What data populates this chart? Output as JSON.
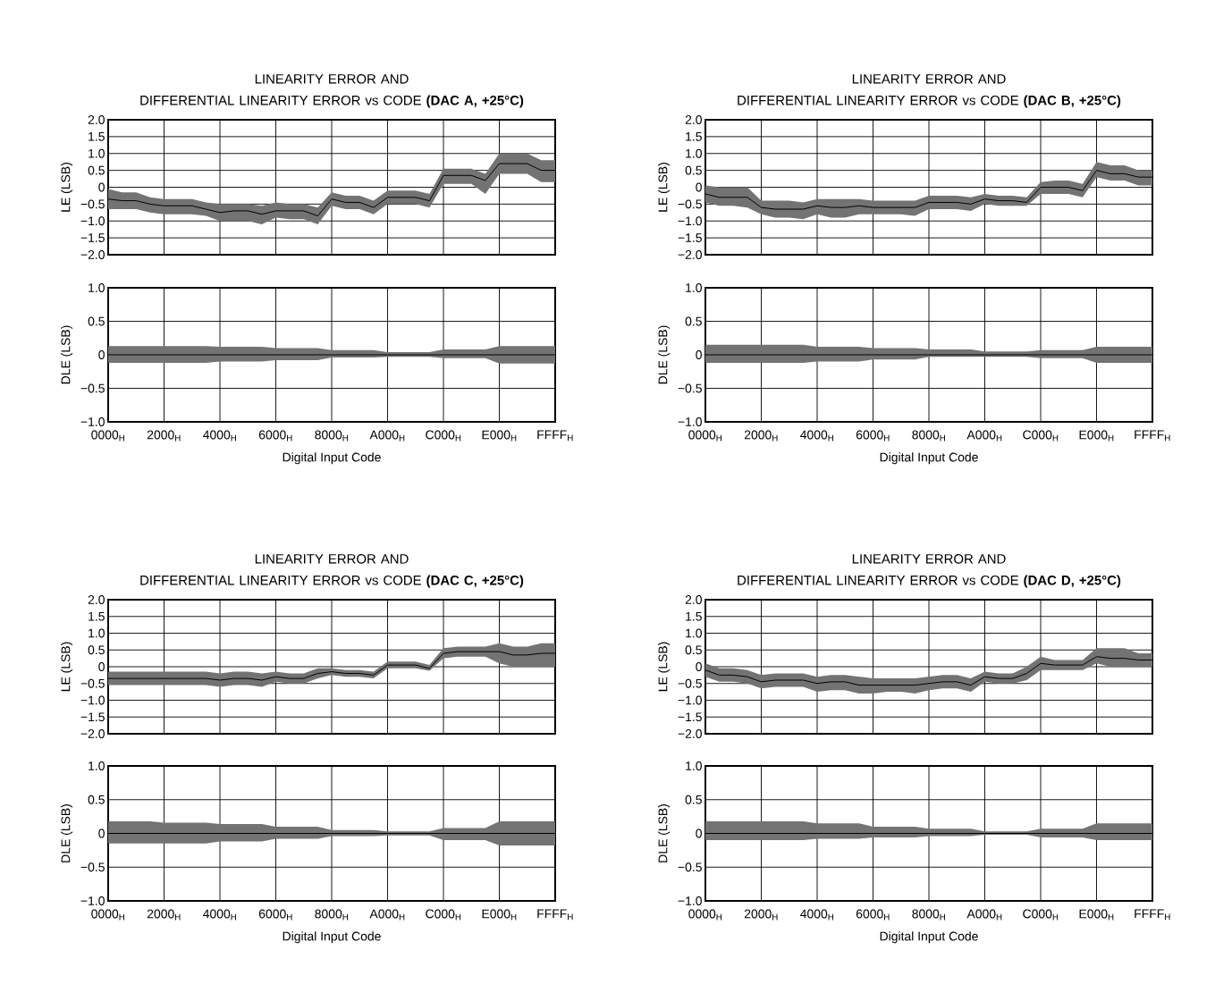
{
  "chart_data": [
    {
      "type": "line",
      "title": "LINEARITY ERROR AND",
      "subtitle": "DIFFERENTIAL LINEARITY ERROR vs CODE **(DAC A, +25°C)**",
      "ylabel": "LE (LSB)",
      "grid": true,
      "tick_labels": "y",
      "categories": [
        null,
        null,
        null,
        null,
        null,
        null,
        null,
        null,
        null,
        null,
        null,
        null,
        null,
        null,
        null,
        null,
        null,
        null,
        null,
        null,
        null,
        null,
        null,
        null,
        null,
        null,
        null,
        null,
        null,
        null,
        null,
        null,
        null
      ],
      "series": [
        {
          "color": "#000000",
          "values": [
            -0.35,
            -0.4,
            -0.4,
            -0.5,
            -0.55,
            -0.55,
            -0.55,
            -0.65,
            -0.75,
            -0.7,
            -0.7,
            -0.8,
            -0.7,
            -0.7,
            -0.7,
            -0.85,
            -0.35,
            -0.45,
            -0.45,
            -0.6,
            -0.3,
            -0.3,
            -0.3,
            -0.4,
            0.35,
            0.35,
            0.35,
            0.2,
            0.7,
            0.7,
            0.7,
            0.5,
            0.5
          ],
          "lower": [
            -0.65,
            -0.65,
            -0.65,
            -0.75,
            -0.8,
            -0.8,
            -0.8,
            -0.85,
            -1.0,
            -1.0,
            -1.0,
            -1.1,
            -0.9,
            -0.95,
            -0.95,
            -1.1,
            -0.55,
            -0.65,
            -0.65,
            -0.8,
            -0.5,
            -0.5,
            -0.5,
            -0.6,
            0.1,
            0.1,
            0.1,
            -0.2,
            0.4,
            0.4,
            0.4,
            0.15,
            0.15
          ],
          "upper": [
            -0.05,
            -0.15,
            -0.15,
            -0.3,
            -0.35,
            -0.35,
            -0.35,
            -0.45,
            -0.5,
            -0.5,
            -0.5,
            -0.55,
            -0.45,
            -0.5,
            -0.5,
            -0.6,
            -0.15,
            -0.25,
            -0.25,
            -0.4,
            -0.1,
            -0.1,
            -0.1,
            -0.2,
            0.55,
            0.55,
            0.55,
            0.4,
            1.0,
            1.0,
            1.0,
            0.8,
            0.8
          ]
        }
      ],
      "ylim": [
        -2,
        2
      ],
      "yticks": [
        {
          "value": -2,
          "label": "−2.0"
        },
        {
          "value": -1.5,
          "label": "−1.5"
        },
        {
          "value": -1,
          "label": "−1.0"
        },
        {
          "value": -0.5,
          "label": "−0.5"
        },
        {
          "value": 0,
          "label": "0"
        },
        {
          "value": 0.5,
          "label": "0.5"
        },
        {
          "value": 1,
          "label": "1.0"
        },
        {
          "value": 1.5,
          "label": "1.5"
        },
        {
          "value": 2,
          "label": "2.0"
        }
      ]
    },
    {
      "type": "line",
      "xlabel": "Digital Input Code",
      "ylabel": "DLE (LSB)",
      "grid": true,
      "categories": [
        "0000$_{H}$",
        null,
        null,
        null,
        "2000$_{H}$",
        null,
        null,
        null,
        "4000$_{H}$",
        null,
        null,
        null,
        "6000$_{H}$",
        null,
        null,
        null,
        "8000$_{H}$",
        null,
        null,
        null,
        "A000$_{H}$",
        null,
        null,
        null,
        "C000$_{H}$",
        null,
        null,
        null,
        "E000$_{H}$",
        null,
        null,
        null,
        "FFFF$_{H}$"
      ],
      "series": [
        {
          "color": "#000000",
          "values": [
            0,
            0,
            0,
            0,
            0,
            0,
            0,
            0,
            0,
            0,
            0,
            0,
            0,
            0,
            0,
            0,
            0,
            0,
            0,
            0,
            0,
            0,
            0,
            0,
            0,
            0,
            0,
            0,
            0,
            0,
            0,
            0,
            0
          ],
          "lower": [
            -0.12,
            -0.12,
            -0.12,
            -0.12,
            -0.12,
            -0.12,
            -0.12,
            -0.12,
            -0.1,
            -0.1,
            -0.1,
            -0.1,
            -0.08,
            -0.08,
            -0.08,
            -0.08,
            -0.04,
            -0.04,
            -0.04,
            -0.04,
            -0.03,
            -0.03,
            -0.03,
            -0.03,
            -0.05,
            -0.05,
            -0.05,
            -0.05,
            -0.13,
            -0.13,
            -0.13,
            -0.13,
            -0.13
          ],
          "upper": [
            0.13,
            0.13,
            0.13,
            0.13,
            0.13,
            0.13,
            0.13,
            0.13,
            0.12,
            0.12,
            0.12,
            0.12,
            0.1,
            0.1,
            0.1,
            0.1,
            0.07,
            0.07,
            0.07,
            0.07,
            0.04,
            0.04,
            0.04,
            0.04,
            0.08,
            0.08,
            0.08,
            0.08,
            0.13,
            0.13,
            0.13,
            0.13,
            0.13
          ]
        }
      ],
      "ylim": [
        -1,
        1
      ],
      "yticks": [
        {
          "value": -1,
          "label": "−1.0"
        },
        {
          "value": -0.5,
          "label": "−0.5"
        },
        {
          "value": 0,
          "label": "0"
        },
        {
          "value": 0.5,
          "label": "0.5"
        },
        {
          "value": 1,
          "label": "1.0"
        }
      ]
    },
    {
      "type": "line",
      "title": "LINEARITY ERROR AND",
      "subtitle": "DIFFERENTIAL LINEARITY ERROR vs CODE **(DAC B, +25°C)**",
      "ylabel": "LE (LSB)",
      "grid": true,
      "tick_labels": "y",
      "categories": [
        null,
        null,
        null,
        null,
        null,
        null,
        null,
        null,
        null,
        null,
        null,
        null,
        null,
        null,
        null,
        null,
        null,
        null,
        null,
        null,
        null,
        null,
        null,
        null,
        null,
        null,
        null,
        null,
        null,
        null,
        null,
        null,
        null
      ],
      "series": [
        {
          "color": "#000000",
          "values": [
            -0.2,
            -0.3,
            -0.3,
            -0.3,
            -0.6,
            -0.65,
            -0.65,
            -0.65,
            -0.55,
            -0.6,
            -0.6,
            -0.55,
            -0.6,
            -0.6,
            -0.6,
            -0.6,
            -0.45,
            -0.45,
            -0.45,
            -0.5,
            -0.35,
            -0.4,
            -0.4,
            -0.45,
            0.0,
            0.0,
            0.0,
            -0.1,
            0.5,
            0.4,
            0.4,
            0.3,
            0.3
          ],
          "lower": [
            -0.45,
            -0.55,
            -0.55,
            -0.6,
            -0.8,
            -0.9,
            -0.9,
            -0.95,
            -0.8,
            -0.9,
            -0.9,
            -0.8,
            -0.8,
            -0.8,
            -0.8,
            -0.85,
            -0.65,
            -0.65,
            -0.65,
            -0.7,
            -0.5,
            -0.55,
            -0.55,
            -0.55,
            -0.2,
            -0.2,
            -0.2,
            -0.3,
            0.3,
            0.2,
            0.2,
            0.05,
            0.05
          ],
          "upper": [
            0.05,
            0.0,
            0.0,
            0.0,
            -0.4,
            -0.4,
            -0.4,
            -0.45,
            -0.35,
            -0.35,
            -0.35,
            -0.35,
            -0.4,
            -0.4,
            -0.4,
            -0.4,
            -0.25,
            -0.25,
            -0.25,
            -0.3,
            -0.2,
            -0.25,
            -0.25,
            -0.3,
            0.15,
            0.2,
            0.2,
            0.1,
            0.75,
            0.65,
            0.65,
            0.5,
            0.5
          ]
        }
      ],
      "ylim": [
        -2,
        2
      ],
      "yticks": [
        {
          "value": -2,
          "label": "−2.0"
        },
        {
          "value": -1.5,
          "label": "−1.5"
        },
        {
          "value": -1,
          "label": "−1.0"
        },
        {
          "value": -0.5,
          "label": "−0.5"
        },
        {
          "value": 0,
          "label": "0"
        },
        {
          "value": 0.5,
          "label": "0.5"
        },
        {
          "value": 1,
          "label": "1.0"
        },
        {
          "value": 1.5,
          "label": "1.5"
        },
        {
          "value": 2,
          "label": "2.0"
        }
      ]
    },
    {
      "type": "line",
      "xlabel": "Digital Input Code",
      "ylabel": "DLE (LSB)",
      "grid": true,
      "categories": [
        "0000$_{H}$",
        null,
        null,
        null,
        "2000$_{H}$",
        null,
        null,
        null,
        "4000$_{H}$",
        null,
        null,
        null,
        "6000$_{H}$",
        null,
        null,
        null,
        "8000$_{H}$",
        null,
        null,
        null,
        "A000$_{H}$",
        null,
        null,
        null,
        "C000$_{H}$",
        null,
        null,
        null,
        "E000$_{H}$",
        null,
        null,
        null,
        "FFFF$_{H}$"
      ],
      "series": [
        {
          "color": "#000000",
          "values": [
            0,
            0,
            0,
            0,
            0,
            0,
            0,
            0,
            0,
            0,
            0,
            0,
            0,
            0,
            0,
            0,
            0,
            0,
            0,
            0,
            0,
            0,
            0,
            0,
            0,
            0,
            0,
            0,
            0,
            0,
            0,
            0,
            0
          ],
          "lower": [
            -0.12,
            -0.12,
            -0.12,
            -0.12,
            -0.12,
            -0.12,
            -0.12,
            -0.12,
            -0.1,
            -0.1,
            -0.1,
            -0.1,
            -0.07,
            -0.07,
            -0.07,
            -0.07,
            -0.03,
            -0.03,
            -0.03,
            -0.03,
            -0.03,
            -0.03,
            -0.03,
            -0.03,
            -0.05,
            -0.05,
            -0.05,
            -0.05,
            -0.12,
            -0.12,
            -0.12,
            -0.12,
            -0.12
          ],
          "upper": [
            0.15,
            0.15,
            0.15,
            0.15,
            0.15,
            0.15,
            0.15,
            0.15,
            0.12,
            0.12,
            0.12,
            0.12,
            0.1,
            0.1,
            0.1,
            0.1,
            0.08,
            0.08,
            0.08,
            0.08,
            0.05,
            0.05,
            0.05,
            0.05,
            0.07,
            0.07,
            0.07,
            0.07,
            0.12,
            0.12,
            0.12,
            0.12,
            0.12
          ]
        }
      ],
      "ylim": [
        -1,
        1
      ],
      "yticks": [
        {
          "value": -1,
          "label": "−1.0"
        },
        {
          "value": -0.5,
          "label": "−0.5"
        },
        {
          "value": 0,
          "label": "0"
        },
        {
          "value": 0.5,
          "label": "0.5"
        },
        {
          "value": 1,
          "label": "1.0"
        }
      ]
    },
    {
      "type": "line",
      "title": "LINEARITY ERROR AND",
      "subtitle": "DIFFERENTIAL LINEARITY ERROR vs CODE **(DAC C, +25°C)**",
      "ylabel": "LE (LSB)",
      "grid": true,
      "tick_labels": "y",
      "categories": [
        null,
        null,
        null,
        null,
        null,
        null,
        null,
        null,
        null,
        null,
        null,
        null,
        null,
        null,
        null,
        null,
        null,
        null,
        null,
        null,
        null,
        null,
        null,
        null,
        null,
        null,
        null,
        null,
        null,
        null,
        null,
        null,
        null
      ],
      "series": [
        {
          "color": "#000000",
          "values": [
            -0.35,
            -0.35,
            -0.35,
            -0.35,
            -0.35,
            -0.35,
            -0.35,
            -0.35,
            -0.4,
            -0.35,
            -0.35,
            -0.4,
            -0.3,
            -0.35,
            -0.35,
            -0.2,
            -0.15,
            -0.2,
            -0.2,
            -0.25,
            0.05,
            0.05,
            0.05,
            -0.05,
            0.4,
            0.45,
            0.45,
            0.45,
            0.45,
            0.35,
            0.35,
            0.4,
            0.4
          ],
          "lower": [
            -0.55,
            -0.55,
            -0.55,
            -0.55,
            -0.55,
            -0.55,
            -0.55,
            -0.55,
            -0.6,
            -0.55,
            -0.55,
            -0.6,
            -0.45,
            -0.5,
            -0.5,
            -0.35,
            -0.25,
            -0.3,
            -0.3,
            -0.35,
            -0.05,
            -0.05,
            -0.05,
            -0.12,
            0.25,
            0.3,
            0.3,
            0.3,
            0.1,
            0.0,
            0.0,
            0.0,
            0.0
          ],
          "upper": [
            -0.15,
            -0.15,
            -0.15,
            -0.15,
            -0.15,
            -0.15,
            -0.15,
            -0.15,
            -0.2,
            -0.15,
            -0.15,
            -0.2,
            -0.15,
            -0.2,
            -0.2,
            -0.05,
            -0.05,
            -0.1,
            -0.1,
            -0.15,
            0.15,
            0.15,
            0.15,
            0.05,
            0.55,
            0.6,
            0.6,
            0.6,
            0.7,
            0.6,
            0.6,
            0.7,
            0.7
          ]
        }
      ],
      "ylim": [
        -2,
        2
      ],
      "yticks": [
        {
          "value": -2,
          "label": "−2.0"
        },
        {
          "value": -1.5,
          "label": "−1.5"
        },
        {
          "value": -1,
          "label": "−1.0"
        },
        {
          "value": -0.5,
          "label": "−0.5"
        },
        {
          "value": 0,
          "label": "0"
        },
        {
          "value": 0.5,
          "label": "0.5"
        },
        {
          "value": 1,
          "label": "1.0"
        },
        {
          "value": 1.5,
          "label": "1.5"
        },
        {
          "value": 2,
          "label": "2.0"
        }
      ]
    },
    {
      "type": "line",
      "xlabel": "Digital Input Code",
      "ylabel": "DLE (LSB)",
      "grid": true,
      "categories": [
        "0000$_{H}$",
        null,
        null,
        null,
        "2000$_{H}$",
        null,
        null,
        null,
        "4000$_{H}$",
        null,
        null,
        null,
        "6000$_{H}$",
        null,
        null,
        null,
        "8000$_{H}$",
        null,
        null,
        null,
        "A000$_{H}$",
        null,
        null,
        null,
        "C000$_{H}$",
        null,
        null,
        null,
        "E000$_{H}$",
        null,
        null,
        null,
        "FFFF$_{H}$"
      ],
      "series": [
        {
          "color": "#000000",
          "values": [
            0,
            0,
            0,
            0,
            0,
            0,
            0,
            0,
            0,
            0,
            0,
            0,
            0,
            0,
            0,
            0,
            0,
            0,
            0,
            0,
            0,
            0,
            0,
            0,
            0,
            0,
            0,
            0,
            0,
            0,
            0,
            0,
            0
          ],
          "lower": [
            -0.15,
            -0.15,
            -0.15,
            -0.15,
            -0.15,
            -0.15,
            -0.15,
            -0.15,
            -0.12,
            -0.12,
            -0.12,
            -0.12,
            -0.08,
            -0.08,
            -0.08,
            -0.08,
            -0.04,
            -0.04,
            -0.04,
            -0.04,
            -0.03,
            -0.03,
            -0.03,
            -0.03,
            -0.1,
            -0.1,
            -0.1,
            -0.1,
            -0.18,
            -0.18,
            -0.18,
            -0.18,
            -0.18
          ],
          "upper": [
            0.18,
            0.18,
            0.18,
            0.18,
            0.16,
            0.16,
            0.16,
            0.16,
            0.14,
            0.14,
            0.14,
            0.14,
            0.1,
            0.1,
            0.1,
            0.1,
            0.05,
            0.05,
            0.05,
            0.05,
            0.03,
            0.03,
            0.03,
            0.03,
            0.08,
            0.08,
            0.08,
            0.08,
            0.18,
            0.18,
            0.18,
            0.18,
            0.18
          ]
        }
      ],
      "ylim": [
        -1,
        1
      ],
      "yticks": [
        {
          "value": -1,
          "label": "−1.0"
        },
        {
          "value": -0.5,
          "label": "−0.5"
        },
        {
          "value": 0,
          "label": "0"
        },
        {
          "value": 0.5,
          "label": "0.5"
        },
        {
          "value": 1,
          "label": "1.0"
        }
      ]
    },
    {
      "type": "line",
      "title": "LINEARITY ERROR AND",
      "subtitle": "DIFFERENTIAL LINEARITY ERROR vs CODE **(DAC D, +25°C)**",
      "ylabel": "LE (LSB)",
      "grid": true,
      "tick_labels": "y",
      "categories": [
        null,
        null,
        null,
        null,
        null,
        null,
        null,
        null,
        null,
        null,
        null,
        null,
        null,
        null,
        null,
        null,
        null,
        null,
        null,
        null,
        null,
        null,
        null,
        null,
        null,
        null,
        null,
        null,
        null,
        null,
        null,
        null,
        null
      ],
      "series": [
        {
          "color": "#000000",
          "values": [
            -0.1,
            -0.25,
            -0.25,
            -0.3,
            -0.45,
            -0.4,
            -0.4,
            -0.4,
            -0.5,
            -0.45,
            -0.45,
            -0.55,
            -0.55,
            -0.55,
            -0.55,
            -0.55,
            -0.5,
            -0.45,
            -0.45,
            -0.55,
            -0.3,
            -0.35,
            -0.35,
            -0.2,
            0.1,
            0.05,
            0.05,
            0.05,
            0.3,
            0.25,
            0.25,
            0.2,
            0.2
          ],
          "lower": [
            -0.3,
            -0.45,
            -0.45,
            -0.5,
            -0.65,
            -0.6,
            -0.6,
            -0.6,
            -0.75,
            -0.7,
            -0.7,
            -0.8,
            -0.8,
            -0.75,
            -0.75,
            -0.8,
            -0.7,
            -0.65,
            -0.65,
            -0.75,
            -0.45,
            -0.5,
            -0.5,
            -0.4,
            -0.1,
            -0.1,
            -0.1,
            -0.1,
            0.1,
            0.0,
            0.0,
            0.0,
            0.0
          ],
          "upper": [
            0.1,
            -0.05,
            -0.05,
            -0.1,
            -0.25,
            -0.2,
            -0.2,
            -0.2,
            -0.3,
            -0.25,
            -0.25,
            -0.3,
            -0.35,
            -0.35,
            -0.35,
            -0.35,
            -0.3,
            -0.25,
            -0.25,
            -0.35,
            -0.15,
            -0.2,
            -0.2,
            0.0,
            0.3,
            0.2,
            0.2,
            0.2,
            0.55,
            0.55,
            0.55,
            0.4,
            0.4
          ]
        }
      ],
      "ylim": [
        -2,
        2
      ],
      "yticks": [
        {
          "value": -2,
          "label": "−2.0"
        },
        {
          "value": -1.5,
          "label": "−1.5"
        },
        {
          "value": -1,
          "label": "−1.0"
        },
        {
          "value": -0.5,
          "label": "−0.5"
        },
        {
          "value": 0,
          "label": "0"
        },
        {
          "value": 0.5,
          "label": "0.5"
        },
        {
          "value": 1,
          "label": "1.0"
        },
        {
          "value": 1.5,
          "label": "1.5"
        },
        {
          "value": 2,
          "label": "2.0"
        }
      ]
    },
    {
      "type": "line",
      "xlabel": "Digital Input Code",
      "ylabel": "DLE (LSB)",
      "grid": true,
      "categories": [
        "0000$_{H}$",
        null,
        null,
        null,
        "2000$_{H}$",
        null,
        null,
        null,
        "4000$_{H}$",
        null,
        null,
        null,
        "6000$_{H}$",
        null,
        null,
        null,
        "8000$_{H}$",
        null,
        null,
        null,
        "A000$_{H}$",
        null,
        null,
        null,
        "C000$_{H}$",
        null,
        null,
        null,
        "E000$_{H}$",
        null,
        null,
        null,
        "FFFF$_{H}$"
      ],
      "series": [
        {
          "color": "#000000",
          "values": [
            0,
            0,
            0,
            0,
            0,
            0,
            0,
            0,
            0,
            0,
            0,
            0,
            0,
            0,
            0,
            0,
            0,
            0,
            0,
            0,
            0,
            0,
            0,
            0,
            0,
            0,
            0,
            0,
            0,
            0,
            0,
            0,
            0
          ],
          "lower": [
            -0.1,
            -0.1,
            -0.1,
            -0.1,
            -0.1,
            -0.1,
            -0.1,
            -0.1,
            -0.08,
            -0.08,
            -0.08,
            -0.08,
            -0.06,
            -0.06,
            -0.06,
            -0.06,
            -0.04,
            -0.04,
            -0.04,
            -0.04,
            -0.02,
            -0.02,
            -0.02,
            -0.02,
            -0.06,
            -0.06,
            -0.06,
            -0.06,
            -0.1,
            -0.1,
            -0.1,
            -0.1,
            -0.1
          ],
          "upper": [
            0.18,
            0.18,
            0.18,
            0.18,
            0.18,
            0.18,
            0.18,
            0.18,
            0.15,
            0.15,
            0.15,
            0.15,
            0.1,
            0.1,
            0.1,
            0.1,
            0.07,
            0.07,
            0.07,
            0.07,
            0.03,
            0.03,
            0.03,
            0.03,
            0.07,
            0.07,
            0.07,
            0.07,
            0.15,
            0.15,
            0.15,
            0.15,
            0.15
          ]
        }
      ],
      "ylim": [
        -1,
        1
      ],
      "yticks": [
        {
          "value": -1,
          "label": "−1.0"
        },
        {
          "value": -0.5,
          "label": "−0.5"
        },
        {
          "value": 0,
          "label": "0"
        },
        {
          "value": 0.5,
          "label": "0.5"
        },
        {
          "value": 1,
          "label": "1.0"
        }
      ]
    }
  ]
}
